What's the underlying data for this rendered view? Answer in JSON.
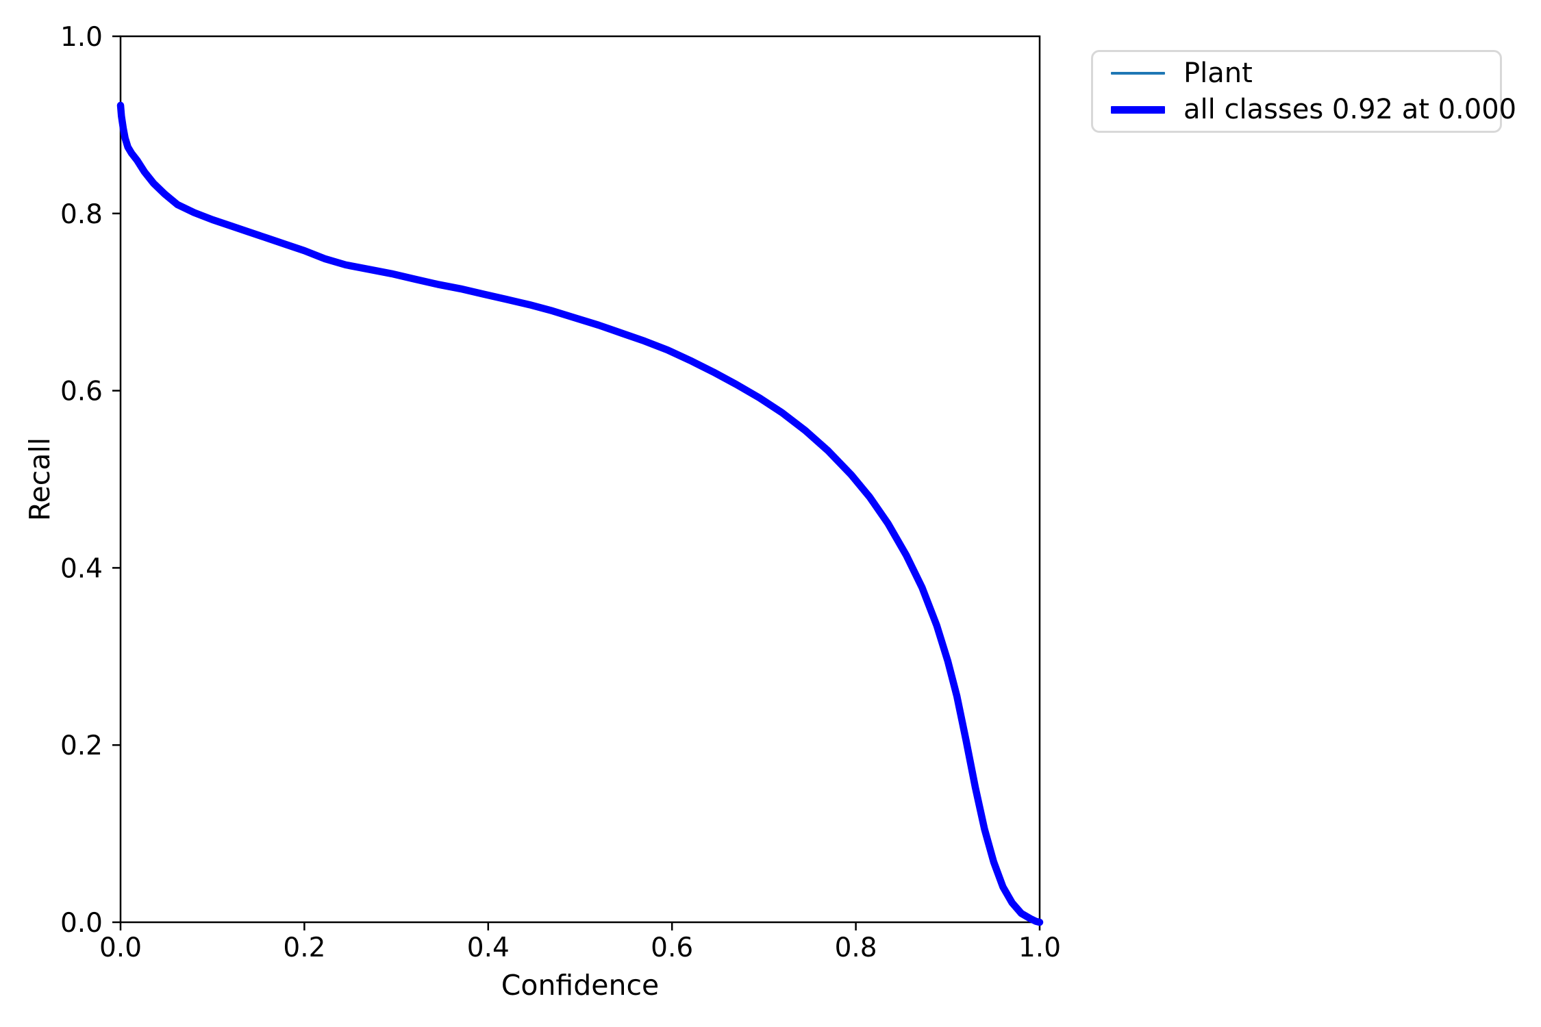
{
  "chart_data": {
    "type": "line",
    "title": "",
    "xlabel": "Confidence",
    "ylabel": "Recall",
    "xlim": [
      0.0,
      1.0
    ],
    "ylim": [
      0.0,
      1.0
    ],
    "x_ticks": [
      "0.0",
      "0.2",
      "0.4",
      "0.6",
      "0.8",
      "1.0"
    ],
    "y_ticks": [
      "0.0",
      "0.2",
      "0.4",
      "0.6",
      "0.8",
      "1.0"
    ],
    "grid": false,
    "legend_position": "outside-upper-right",
    "axis_color": "#000000",
    "points": [
      [
        0.0,
        0.922
      ],
      [
        0.001,
        0.91
      ],
      [
        0.003,
        0.896
      ],
      [
        0.005,
        0.885
      ],
      [
        0.008,
        0.875
      ],
      [
        0.012,
        0.868
      ],
      [
        0.018,
        0.86
      ],
      [
        0.026,
        0.847
      ],
      [
        0.036,
        0.834
      ],
      [
        0.048,
        0.822
      ],
      [
        0.062,
        0.81
      ],
      [
        0.08,
        0.801
      ],
      [
        0.1,
        0.793
      ],
      [
        0.12,
        0.786
      ],
      [
        0.14,
        0.779
      ],
      [
        0.16,
        0.772
      ],
      [
        0.18,
        0.765
      ],
      [
        0.2,
        0.758
      ],
      [
        0.222,
        0.749
      ],
      [
        0.245,
        0.742
      ],
      [
        0.27,
        0.737
      ],
      [
        0.295,
        0.732
      ],
      [
        0.32,
        0.726
      ],
      [
        0.345,
        0.72
      ],
      [
        0.37,
        0.715
      ],
      [
        0.395,
        0.709
      ],
      [
        0.42,
        0.703
      ],
      [
        0.445,
        0.697
      ],
      [
        0.47,
        0.69
      ],
      [
        0.495,
        0.682
      ],
      [
        0.52,
        0.674
      ],
      [
        0.545,
        0.665
      ],
      [
        0.57,
        0.656
      ],
      [
        0.595,
        0.646
      ],
      [
        0.62,
        0.634
      ],
      [
        0.645,
        0.621
      ],
      [
        0.67,
        0.607
      ],
      [
        0.695,
        0.592
      ],
      [
        0.72,
        0.575
      ],
      [
        0.745,
        0.555
      ],
      [
        0.77,
        0.532
      ],
      [
        0.795,
        0.505
      ],
      [
        0.815,
        0.48
      ],
      [
        0.835,
        0.45
      ],
      [
        0.855,
        0.414
      ],
      [
        0.872,
        0.378
      ],
      [
        0.888,
        0.335
      ],
      [
        0.9,
        0.295
      ],
      [
        0.91,
        0.255
      ],
      [
        0.92,
        0.205
      ],
      [
        0.93,
        0.152
      ],
      [
        0.94,
        0.105
      ],
      [
        0.95,
        0.068
      ],
      [
        0.96,
        0.04
      ],
      [
        0.97,
        0.022
      ],
      [
        0.98,
        0.01
      ],
      [
        0.99,
        0.004
      ],
      [
        0.996,
        0.001
      ],
      [
        1.0,
        0.0
      ]
    ],
    "series": [
      {
        "name": "Plant",
        "color": "#1f77b4",
        "linewidth": 3.5
      },
      {
        "name": "all classes 0.92 at 0.000",
        "color": "#0000ff",
        "linewidth": 10.5
      }
    ]
  },
  "legend": {
    "items": [
      {
        "label": "Plant",
        "color": "#1f77b4",
        "swatch_height": 4
      },
      {
        "label": "all classes 0.92 at 0.000",
        "color": "#0000ff",
        "swatch_height": 11
      }
    ]
  }
}
